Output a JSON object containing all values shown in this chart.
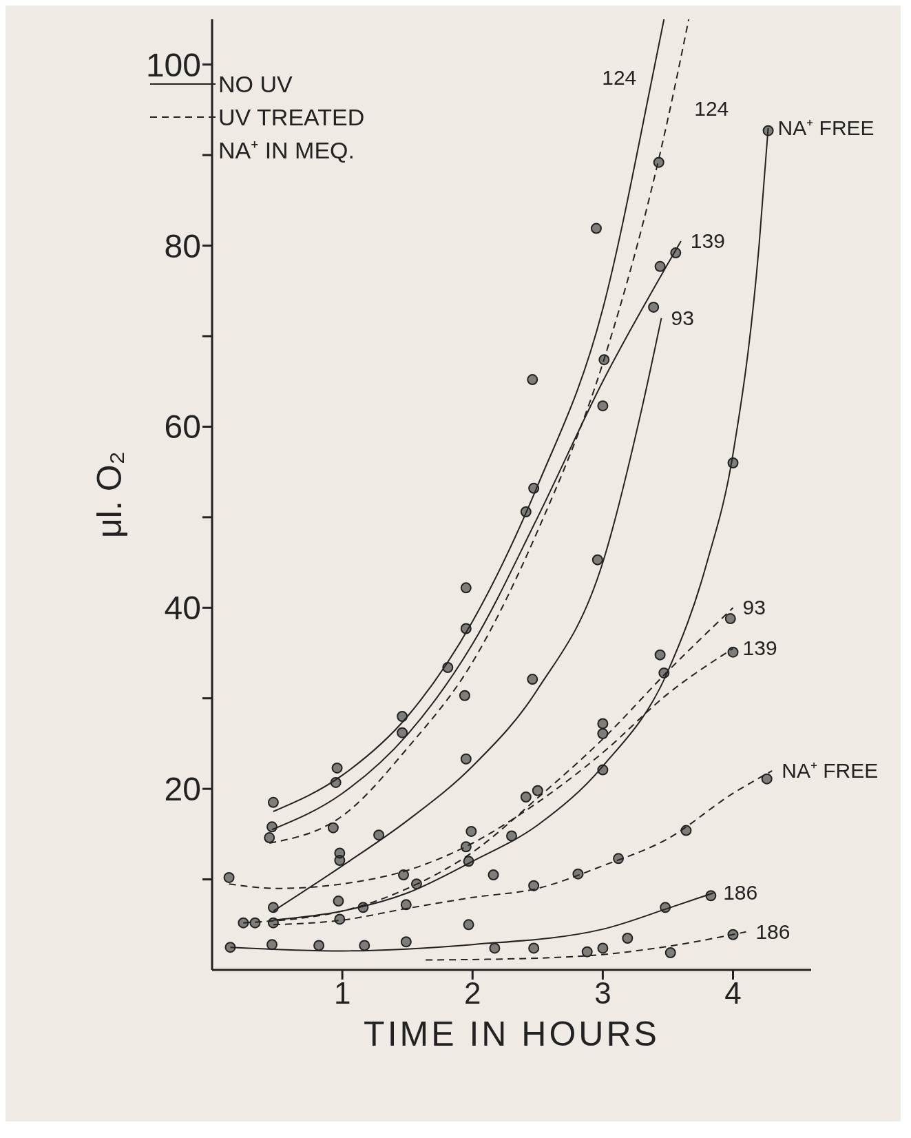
{
  "chart_data": {
    "type": "line",
    "xlabel": "TIME IN HOURS",
    "ylabel": "μl. O₂",
    "legend_title": "NA⁺ IN MEQ.",
    "marker": "circle",
    "grid": false,
    "annotations": [
      "NO UV",
      "UV TREATED"
    ],
    "xlim": [
      0,
      4.6
    ],
    "xticks": [
      1,
      2,
      3,
      4
    ],
    "ylim": [
      0,
      105
    ],
    "yticks": [
      {
        "value": 10,
        "label": null
      },
      20,
      {
        "value": 30,
        "label": null
      },
      40,
      {
        "value": 50,
        "label": null
      },
      60,
      {
        "value": 70,
        "label": null
      },
      80,
      {
        "value": 90,
        "label": null
      },
      100
    ],
    "series": [
      {
        "name": "124",
        "marker": "none",
        "line_style": "solid",
        "color": "#222222",
        "x": [
          0.47,
          1.0,
          1.5,
          2.0,
          2.5,
          3.0,
          3.4,
          3.47
        ],
        "values": [
          17.5,
          21.5,
          28,
          38.5,
          53.5,
          73,
          100,
          105
        ]
      },
      {
        "name": "124",
        "marker": "none",
        "line_style": "dashed",
        "color": "#222222",
        "x": [
          0.44,
          1.0,
          1.5,
          2.0,
          2.5,
          3.0,
          3.5,
          3.66
        ],
        "values": [
          14,
          17,
          24.5,
          34,
          48.5,
          67,
          94,
          105
        ]
      },
      {
        "name": "139",
        "marker": "none",
        "line_style": "solid",
        "color": "#222222",
        "x": [
          0.46,
          1.0,
          1.5,
          2.0,
          2.5,
          3.0,
          3.5,
          3.6
        ],
        "values": [
          15.5,
          19.5,
          26,
          36,
          50,
          65,
          78,
          80.5
        ]
      },
      {
        "name": "93",
        "marker": "none",
        "line_style": "solid",
        "color": "#222222",
        "x": [
          0.47,
          1.0,
          1.5,
          2.0,
          2.5,
          3.0,
          3.3,
          3.45
        ],
        "values": [
          6.5,
          11.5,
          16.5,
          22.5,
          31,
          45,
          62,
          72
        ]
      },
      {
        "name": "NA⁺ FREE",
        "marker": "none",
        "line_style": "solid",
        "color": "#222222",
        "x": [
          0.47,
          1.0,
          1.5,
          2.0,
          2.5,
          3.0,
          3.5,
          3.8,
          4.0,
          4.2,
          4.27
        ],
        "values": [
          5.5,
          6.5,
          8.5,
          12,
          16,
          22.5,
          33,
          45,
          57,
          80,
          93
        ]
      },
      {
        "name": "93",
        "marker": "none",
        "line_style": "dashed",
        "color": "#222222",
        "x": [
          0.24,
          1.0,
          1.5,
          2.0,
          2.5,
          3.0,
          3.5,
          4.0
        ],
        "values": [
          5.2,
          6.5,
          9,
          13,
          19,
          25.5,
          33,
          40
        ]
      },
      {
        "name": "139",
        "marker": "none",
        "line_style": "dashed",
        "color": "#222222",
        "x": [
          0.13,
          0.5,
          1.0,
          1.5,
          2.0,
          2.5,
          3.0,
          3.5,
          4.0
        ],
        "values": [
          9.5,
          9,
          9.5,
          11,
          14,
          18.5,
          24,
          30.5,
          35.5
        ]
      },
      {
        "name": "NA⁺ FREE",
        "marker": "none",
        "line_style": "dashed",
        "color": "#222222",
        "x": [
          0.47,
          1.0,
          1.5,
          2.0,
          2.5,
          3.0,
          3.5,
          4.0,
          4.3
        ],
        "values": [
          5,
          5.5,
          6.8,
          8,
          9,
          11.5,
          14.5,
          19.5,
          22
        ]
      },
      {
        "name": "186",
        "marker": "none",
        "line_style": "solid",
        "color": "#222222",
        "x": [
          0.14,
          1.0,
          2.0,
          3.0,
          3.5,
          3.85
        ],
        "values": [
          2.5,
          2.1,
          2.8,
          4.5,
          6.8,
          8.5
        ]
      },
      {
        "name": "186",
        "marker": "none",
        "line_style": "dashed",
        "color": "#222222",
        "x": [
          1.64,
          2.5,
          3.0,
          3.5,
          4.1
        ],
        "values": [
          1.1,
          1.3,
          1.7,
          2.6,
          4.2
        ]
      },
      {
        "type": "scatter",
        "color": "#222222",
        "x": [
          0.47,
          0.96,
          1.46,
          1.95,
          2.46,
          2.95
        ],
        "values": [
          18.5,
          22.3,
          28.0,
          42.2,
          65.2,
          81.9
        ]
      },
      {
        "type": "scatter",
        "color": "#222222",
        "x": [
          0.44,
          0.93,
          1.46,
          1.94,
          2.41,
          3.01,
          3.43
        ],
        "values": [
          14.6,
          15.7,
          26.2,
          30.3,
          50.6,
          67.4,
          89.2
        ]
      },
      {
        "type": "scatter",
        "color": "#222222",
        "x": [
          0.46,
          0.95,
          1.81,
          1.95,
          2.47,
          3.0,
          3.44,
          3.56
        ],
        "values": [
          15.8,
          20.7,
          33.4,
          37.7,
          53.2,
          62.3,
          77.7,
          79.2
        ]
      },
      {
        "type": "scatter",
        "color": "#222222",
        "x": [
          0.47,
          0.98,
          1.95,
          2.46,
          2.96,
          3.39
        ],
        "values": [
          6.9,
          12.9,
          23.3,
          32.1,
          45.3,
          73.2
        ]
      },
      {
        "type": "scatter",
        "color": "#222222",
        "x": [
          1.57,
          1.97,
          3.0,
          4.0,
          4.27
        ],
        "values": [
          9.5,
          12,
          22.1,
          56,
          92.7
        ]
      },
      {
        "type": "scatter",
        "color": "#222222",
        "x": [
          0.24,
          0.33,
          0.47,
          0.98,
          1.16,
          1.28,
          1.49,
          1.95,
          2.41,
          3.0,
          3.44,
          3.98
        ],
        "values": [
          5.2,
          5.2,
          5.2,
          5.6,
          6.9,
          14.9,
          7.2,
          13.6,
          19.1,
          27.2,
          34.8,
          38.8
        ]
      },
      {
        "type": "scatter",
        "color": "#222222",
        "x": [
          0.13,
          0.98,
          1.47,
          1.99,
          2.5,
          3.0,
          3.47,
          4.0
        ],
        "values": [
          10.2,
          12.1,
          10.5,
          15.3,
          19.8,
          26.1,
          32.8,
          35.1
        ]
      },
      {
        "type": "scatter",
        "color": "#222222",
        "x": [
          0.97,
          1.97,
          2.16,
          2.3,
          2.47,
          2.81,
          3.12,
          3.64,
          4.26
        ],
        "values": [
          7.6,
          5,
          10.5,
          14.8,
          9.3,
          10.6,
          12.3,
          15.4,
          21.1
        ]
      },
      {
        "type": "scatter",
        "color": "#222222",
        "x": [
          0.14,
          0.46,
          0.82,
          1.17,
          1.49,
          3.48,
          3.83
        ],
        "values": [
          2.5,
          2.8,
          2.7,
          2.7,
          3.1,
          6.9,
          8.2
        ]
      },
      {
        "type": "scatter",
        "color": "#222222",
        "x": [
          2.17,
          2.47,
          2.88,
          3.0,
          3.19,
          3.52,
          4.0
        ],
        "values": [
          2.4,
          2.4,
          2.0,
          2.4,
          3.5,
          1.9,
          3.9
        ]
      }
    ]
  }
}
